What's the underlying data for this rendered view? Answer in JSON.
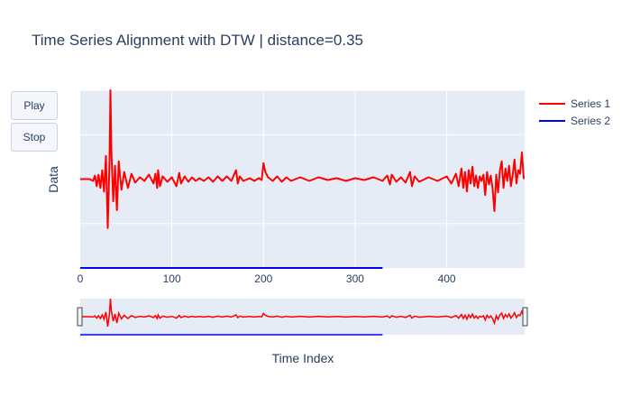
{
  "chart_data": {
    "type": "line",
    "title": "Time Series Alignment with DTW | distance=0.35",
    "xlabel": "Time Index",
    "ylabel": "Data",
    "xlim": [
      0,
      485
    ],
    "ylim": [
      -1.0,
      1.0
    ],
    "x_ticks": [
      0,
      100,
      200,
      300,
      400
    ],
    "y_gridlines": [
      -0.5,
      0,
      0.5,
      1.0
    ],
    "grid": true,
    "legend": "top-right",
    "rangeslider": true,
    "series": [
      {
        "name": "Series 1",
        "color": "#ff0000",
        "points": [
          [
            0,
            0
          ],
          [
            10,
            0
          ],
          [
            14,
            -0.02
          ],
          [
            16,
            0.04
          ],
          [
            18,
            -0.08
          ],
          [
            20,
            0.05
          ],
          [
            22,
            -0.1
          ],
          [
            24,
            0.1
          ],
          [
            26,
            -0.14
          ],
          [
            28,
            0.26
          ],
          [
            30,
            -0.55
          ],
          [
            32,
            0.2
          ],
          [
            33,
            1.0
          ],
          [
            34,
            0.3
          ],
          [
            36,
            -0.25
          ],
          [
            38,
            0.15
          ],
          [
            40,
            -0.35
          ],
          [
            42,
            0.2
          ],
          [
            45,
            -0.12
          ],
          [
            48,
            0.08
          ],
          [
            52,
            -0.1
          ],
          [
            56,
            0.06
          ],
          [
            60,
            -0.04
          ],
          [
            65,
            0.02
          ],
          [
            70,
            -0.02
          ],
          [
            75,
            0.05
          ],
          [
            80,
            -0.05
          ],
          [
            82,
            0.06
          ],
          [
            84,
            -0.1
          ],
          [
            85,
            0.1
          ],
          [
            87,
            -0.08
          ],
          [
            90,
            0.03
          ],
          [
            95,
            -0.03
          ],
          [
            100,
            0.02
          ],
          [
            105,
            -0.08
          ],
          [
            108,
            0.07
          ],
          [
            110,
            -0.05
          ],
          [
            114,
            0.03
          ],
          [
            118,
            -0.03
          ],
          [
            122,
            0.02
          ],
          [
            126,
            -0.02
          ],
          [
            130,
            0.01
          ],
          [
            135,
            -0.02
          ],
          [
            140,
            0.02
          ],
          [
            145,
            -0.03
          ],
          [
            150,
            0.03
          ],
          [
            155,
            -0.02
          ],
          [
            160,
            0.03
          ],
          [
            165,
            -0.02
          ],
          [
            170,
            0.1
          ],
          [
            172,
            -0.05
          ],
          [
            174,
            0.03
          ],
          [
            178,
            -0.02
          ],
          [
            185,
            0.01
          ],
          [
            190,
            -0.02
          ],
          [
            195,
            0.01
          ],
          [
            198,
            -0.01
          ],
          [
            200,
            0.18
          ],
          [
            202,
            0.08
          ],
          [
            205,
            0.02
          ],
          [
            210,
            -0.02
          ],
          [
            215,
            0.03
          ],
          [
            220,
            -0.03
          ],
          [
            225,
            0.02
          ],
          [
            230,
            -0.02
          ],
          [
            240,
            0.02
          ],
          [
            250,
            -0.02
          ],
          [
            260,
            0.02
          ],
          [
            270,
            -0.01
          ],
          [
            280,
            0.01
          ],
          [
            290,
            -0.02
          ],
          [
            300,
            0.01
          ],
          [
            310,
            -0.01
          ],
          [
            320,
            0.02
          ],
          [
            330,
            -0.02
          ],
          [
            335,
            0.04
          ],
          [
            338,
            -0.06
          ],
          [
            340,
            0.05
          ],
          [
            345,
            -0.03
          ],
          [
            350,
            0.02
          ],
          [
            355,
            -0.04
          ],
          [
            360,
            0.08
          ],
          [
            362,
            -0.08
          ],
          [
            365,
            0.03
          ],
          [
            370,
            -0.03
          ],
          [
            380,
            0.02
          ],
          [
            390,
            -0.02
          ],
          [
            400,
            0.03
          ],
          [
            405,
            -0.05
          ],
          [
            410,
            0.06
          ],
          [
            413,
            -0.08
          ],
          [
            416,
            0.12
          ],
          [
            418,
            -0.1
          ],
          [
            420,
            0.08
          ],
          [
            422,
            -0.14
          ],
          [
            424,
            0.1
          ],
          [
            426,
            -0.05
          ],
          [
            428,
            0.14
          ],
          [
            430,
            -0.08
          ],
          [
            432,
            0.04
          ],
          [
            434,
            -0.1
          ],
          [
            436,
            0.03
          ],
          [
            438,
            -0.02
          ],
          [
            440,
            0.05
          ],
          [
            442,
            -0.18
          ],
          [
            444,
            0.08
          ],
          [
            446,
            -0.06
          ],
          [
            448,
            0.04
          ],
          [
            450,
            -0.1
          ],
          [
            452,
            -0.36
          ],
          [
            454,
            0.05
          ],
          [
            456,
            -0.15
          ],
          [
            458,
            0.1
          ],
          [
            460,
            0.2
          ],
          [
            462,
            -0.1
          ],
          [
            464,
            0.12
          ],
          [
            466,
            -0.02
          ],
          [
            468,
            0.15
          ],
          [
            470,
            -0.08
          ],
          [
            472,
            0.05
          ],
          [
            474,
            0.22
          ],
          [
            476,
            -0.05
          ],
          [
            478,
            0.1
          ],
          [
            480,
            0.06
          ],
          [
            482,
            0.3
          ],
          [
            484,
            0.0
          ]
        ]
      },
      {
        "name": "Series 2",
        "color": "#0000ff",
        "points": [
          [
            0,
            -1.0
          ],
          [
            330,
            -1.0
          ]
        ]
      }
    ]
  },
  "buttons": {
    "play": "Play",
    "stop": "Stop"
  }
}
